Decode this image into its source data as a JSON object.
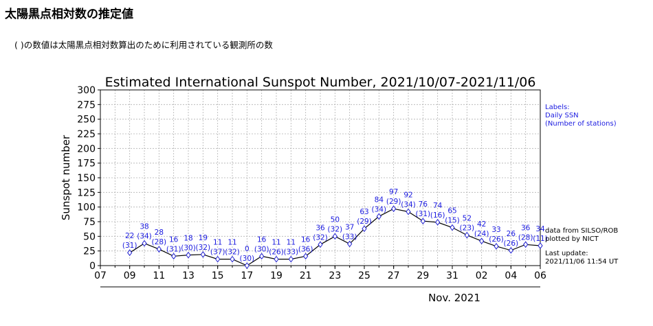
{
  "page": {
    "title": "太陽黒点相対数の推定値",
    "note": "( )の数値は太陽黒点相対数算出のために利用されている観測所の数"
  },
  "side_notes": {
    "labels_heading": "Labels:",
    "labels_line1": "Daily SSN",
    "labels_line2": "(Number of stations)",
    "source_line1": "data from SILSO/ROB",
    "source_line2": "plotted by NICT",
    "update_line1": "Last update:",
    "update_line2": "2021/11/06 11:54 UT"
  },
  "colors": {
    "line": "#000000",
    "marker": "#1f1fd0",
    "label": "#1a1ae0",
    "grid": "#b0b0b0"
  },
  "chart_data": {
    "type": "line",
    "title": "Estimated International Sunspot Number, 2021/10/07-2021/11/06",
    "xlabel": "",
    "ylabel": "Sunspot number",
    "month_label": "Nov. 2021",
    "ylim": [
      0,
      300
    ],
    "yticks": [
      0,
      25,
      50,
      75,
      100,
      125,
      150,
      175,
      200,
      225,
      250,
      275,
      300
    ],
    "x_range": [
      "2021-10-07",
      "2021-11-06"
    ],
    "xticks": [
      {
        "date": "2021-10-07",
        "label": "07"
      },
      {
        "date": "2021-10-09",
        "label": "09"
      },
      {
        "date": "2021-10-11",
        "label": "11"
      },
      {
        "date": "2021-10-13",
        "label": "13"
      },
      {
        "date": "2021-10-15",
        "label": "15"
      },
      {
        "date": "2021-10-17",
        "label": "17"
      },
      {
        "date": "2021-10-19",
        "label": "19"
      },
      {
        "date": "2021-10-21",
        "label": "21"
      },
      {
        "date": "2021-10-23",
        "label": "23"
      },
      {
        "date": "2021-10-25",
        "label": "25"
      },
      {
        "date": "2021-10-27",
        "label": "27"
      },
      {
        "date": "2021-10-29",
        "label": "29"
      },
      {
        "date": "2021-10-31",
        "label": "31"
      },
      {
        "date": "2021-11-02",
        "label": "02"
      },
      {
        "date": "2021-11-04",
        "label": "04"
      },
      {
        "date": "2021-11-06",
        "label": "06"
      }
    ],
    "grid": true,
    "series": [
      {
        "points": [
          {
            "date": "2021-10-09",
            "value": 22,
            "stations": 31
          },
          {
            "date": "2021-10-10",
            "value": 38,
            "stations": 34
          },
          {
            "date": "2021-10-11",
            "value": 28,
            "stations": 28
          },
          {
            "date": "2021-10-12",
            "value": 16,
            "stations": 31
          },
          {
            "date": "2021-10-13",
            "value": 18,
            "stations": 30
          },
          {
            "date": "2021-10-14",
            "value": 19,
            "stations": 32
          },
          {
            "date": "2021-10-15",
            "value": 11,
            "stations": 37
          },
          {
            "date": "2021-10-16",
            "value": 11,
            "stations": 32
          },
          {
            "date": "2021-10-17",
            "value": 0,
            "stations": 30
          },
          {
            "date": "2021-10-18",
            "value": 16,
            "stations": 30
          },
          {
            "date": "2021-10-19",
            "value": 11,
            "stations": 26
          },
          {
            "date": "2021-10-20",
            "value": 11,
            "stations": 33
          },
          {
            "date": "2021-10-21",
            "value": 16,
            "stations": 36
          },
          {
            "date": "2021-10-22",
            "value": 36,
            "stations": 32
          },
          {
            "date": "2021-10-23",
            "value": 50,
            "stations": 32
          },
          {
            "date": "2021-10-24",
            "value": 37,
            "stations": 33
          },
          {
            "date": "2021-10-25",
            "value": 63,
            "stations": 29
          },
          {
            "date": "2021-10-26",
            "value": 84,
            "stations": 34
          },
          {
            "date": "2021-10-27",
            "value": 97,
            "stations": 29
          },
          {
            "date": "2021-10-28",
            "value": 92,
            "stations": 34
          },
          {
            "date": "2021-10-29",
            "value": 76,
            "stations": 31
          },
          {
            "date": "2021-10-30",
            "value": 74,
            "stations": 16
          },
          {
            "date": "2021-10-31",
            "value": 65,
            "stations": 15
          },
          {
            "date": "2021-11-01",
            "value": 52,
            "stations": 23
          },
          {
            "date": "2021-11-02",
            "value": 42,
            "stations": 24
          },
          {
            "date": "2021-11-03",
            "value": 33,
            "stations": 26
          },
          {
            "date": "2021-11-04",
            "value": 26,
            "stations": 26
          },
          {
            "date": "2021-11-05",
            "value": 36,
            "stations": 28
          },
          {
            "date": "2021-11-06",
            "value": 34,
            "stations": 11
          }
        ]
      }
    ]
  }
}
